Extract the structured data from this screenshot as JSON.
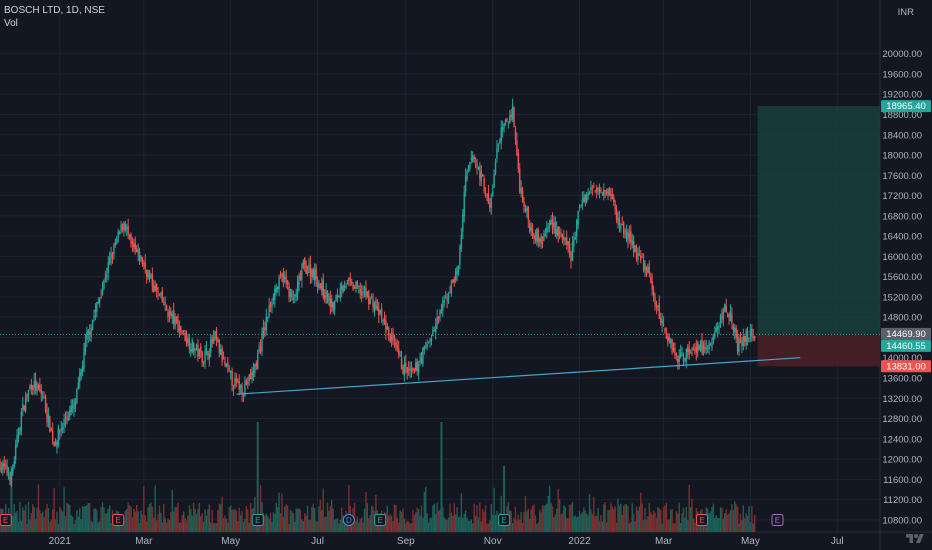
{
  "header": {
    "symbol_line": "BOSCH LTD, 1D, NSE",
    "volume_label": "Vol"
  },
  "axis": {
    "currency": "INR"
  },
  "colors": {
    "background": "#131722",
    "grid": "#1f2330",
    "up": "#26a69a",
    "down": "#ef5350",
    "volume_up": "#1f5f58",
    "volume_down": "#7c2f2f",
    "trendline": "#4aa3c8",
    "profit_zone": "#17403c",
    "loss_zone": "#4a1f26",
    "axis_text": "#b2b5be"
  },
  "icons": {
    "logo": "tradingview-logo",
    "earnings_marker": "earnings-e-icon",
    "dividend_marker": "dividend-d-icon"
  },
  "chart_data": {
    "type": "candlestick",
    "title": "BOSCH LTD, 1D, NSE",
    "y_unit": "INR",
    "ylim": [
      10600,
      21000
    ],
    "y_ticks": [
      10800,
      11200,
      11600,
      12000,
      12400,
      12800,
      13200,
      13600,
      14000,
      14400,
      14800,
      15200,
      15600,
      16000,
      16400,
      16800,
      17200,
      17600,
      18000,
      18400,
      18800,
      19200,
      19600,
      20000
    ],
    "y_tick_labels": [
      "10800.00",
      "11200.00",
      "11600.00",
      "12000.00",
      "12400.00",
      "12800.00",
      "13200.00",
      "13600.00",
      "14000.00",
      "14400.00",
      "14800.00",
      "15200.00",
      "15600.00",
      "16000.00",
      "16400.00",
      "16800.00",
      "17200.00",
      "17600.00",
      "18000.00",
      "18400.00",
      "18800.00",
      "19200.00",
      "19600.00",
      "20000.00"
    ],
    "x_range": [
      "2020-11-20",
      "2022-07-31"
    ],
    "x_ticks": [
      {
        "date": "2021-01-01",
        "label": "2021"
      },
      {
        "date": "2021-03-01",
        "label": "Mar"
      },
      {
        "date": "2021-05-01",
        "label": "May"
      },
      {
        "date": "2021-07-01",
        "label": "Jul"
      },
      {
        "date": "2021-09-01",
        "label": "Sep"
      },
      {
        "date": "2021-11-01",
        "label": "Nov"
      },
      {
        "date": "2022-01-01",
        "label": "2022"
      },
      {
        "date": "2022-03-01",
        "label": "Mar"
      },
      {
        "date": "2022-05-01",
        "label": "May"
      },
      {
        "date": "2022-07-01",
        "label": "Jul"
      }
    ],
    "price_path": [
      [
        "2020-11-20",
        11900
      ],
      [
        "2020-11-28",
        11650
      ],
      [
        "2020-12-05",
        12900
      ],
      [
        "2020-12-12",
        13500
      ],
      [
        "2020-12-20",
        13250
      ],
      [
        "2020-12-28",
        12300
      ],
      [
        "2021-01-05",
        12800
      ],
      [
        "2021-01-12",
        13100
      ],
      [
        "2021-01-20",
        14400
      ],
      [
        "2021-01-28",
        15100
      ],
      [
        "2021-02-05",
        15900
      ],
      [
        "2021-02-10",
        16300
      ],
      [
        "2021-02-15",
        16700
      ],
      [
        "2021-02-20",
        16200
      ],
      [
        "2021-02-28",
        15900
      ],
      [
        "2021-03-08",
        15400
      ],
      [
        "2021-03-18",
        14900
      ],
      [
        "2021-03-28",
        14500
      ],
      [
        "2021-04-05",
        14200
      ],
      [
        "2021-04-12",
        14000
      ],
      [
        "2021-04-20",
        14400
      ],
      [
        "2021-04-26",
        13900
      ],
      [
        "2021-05-03",
        13500
      ],
      [
        "2021-05-10",
        13400
      ],
      [
        "2021-05-17",
        13700
      ],
      [
        "2021-05-24",
        14500
      ],
      [
        "2021-05-31",
        15300
      ],
      [
        "2021-06-07",
        15600
      ],
      [
        "2021-06-14",
        15100
      ],
      [
        "2021-06-21",
        15800
      ],
      [
        "2021-06-28",
        15700
      ],
      [
        "2021-07-05",
        15300
      ],
      [
        "2021-07-12",
        15000
      ],
      [
        "2021-07-19",
        15500
      ],
      [
        "2021-07-26",
        15400
      ],
      [
        "2021-08-02",
        15300
      ],
      [
        "2021-08-09",
        15100
      ],
      [
        "2021-08-16",
        14700
      ],
      [
        "2021-08-23",
        14300
      ],
      [
        "2021-08-30",
        13800
      ],
      [
        "2021-09-06",
        13650
      ],
      [
        "2021-09-13",
        14100
      ],
      [
        "2021-09-20",
        14500
      ],
      [
        "2021-09-27",
        15000
      ],
      [
        "2021-10-04",
        15500
      ],
      [
        "2021-10-08",
        15800
      ],
      [
        "2021-10-13",
        17500
      ],
      [
        "2021-10-18",
        18000
      ],
      [
        "2021-10-25",
        17500
      ],
      [
        "2021-10-30",
        16900
      ],
      [
        "2021-11-05",
        18300
      ],
      [
        "2021-11-10",
        18600
      ],
      [
        "2021-11-15",
        18900
      ],
      [
        "2021-11-20",
        17400
      ],
      [
        "2021-11-27",
        16600
      ],
      [
        "2021-12-05",
        16300
      ],
      [
        "2021-12-12",
        16700
      ],
      [
        "2021-12-19",
        16400
      ],
      [
        "2021-12-26",
        16000
      ],
      [
        "2022-01-02",
        17100
      ],
      [
        "2022-01-09",
        17300
      ],
      [
        "2022-01-16",
        17400
      ],
      [
        "2022-01-22",
        17300
      ],
      [
        "2022-01-28",
        16700
      ],
      [
        "2022-02-04",
        16400
      ],
      [
        "2022-02-11",
        16000
      ],
      [
        "2022-02-18",
        15700
      ],
      [
        "2022-02-25",
        14900
      ],
      [
        "2022-03-04",
        14400
      ],
      [
        "2022-03-11",
        14000
      ],
      [
        "2022-03-18",
        14100
      ],
      [
        "2022-03-25",
        14250
      ],
      [
        "2022-04-01",
        14150
      ],
      [
        "2022-04-08",
        14600
      ],
      [
        "2022-04-13",
        15000
      ],
      [
        "2022-04-18",
        14800
      ],
      [
        "2022-04-22",
        14200
      ],
      [
        "2022-04-29",
        14450
      ],
      [
        "2022-05-04",
        14460
      ]
    ],
    "volume_spikes": [
      {
        "date": "2021-05-20",
        "value": 1.0
      },
      {
        "date": "2021-09-26",
        "value": 1.0
      },
      {
        "date": "2021-11-09",
        "value": 0.6
      },
      {
        "date": "2020-11-28",
        "value": 0.6
      }
    ],
    "trendline": {
      "from": [
        "2021-05-05",
        13280
      ],
      "to": [
        "2022-06-05",
        14000
      ]
    },
    "position": {
      "start": "2022-05-06",
      "end": "2022-07-31",
      "entry": 14460.55,
      "target": 18965.4,
      "stop": 13831.0
    },
    "price_labels": [
      {
        "value": 18965.4,
        "text": "18965.40",
        "color": "#26a69a"
      },
      {
        "value": 14469.9,
        "text": "14469.90",
        "color": "#5d606b"
      },
      {
        "value": 14460.55,
        "text": "14460.55",
        "color": "#26a69a"
      },
      {
        "value": 13831.0,
        "text": "13831.00",
        "color": "#ef5350"
      }
    ],
    "event_markers": [
      {
        "date": "2020-11-24",
        "type": "E"
      },
      {
        "date": "2021-02-11",
        "type": "E"
      },
      {
        "date": "2021-05-20",
        "type": "E"
      },
      {
        "date": "2021-07-23",
        "type": "D"
      },
      {
        "date": "2021-08-14",
        "type": "E"
      },
      {
        "date": "2021-11-09",
        "type": "E"
      },
      {
        "date": "2022-03-28",
        "type": "E"
      },
      {
        "date": "2022-05-20",
        "type": "E",
        "future": true
      }
    ]
  }
}
